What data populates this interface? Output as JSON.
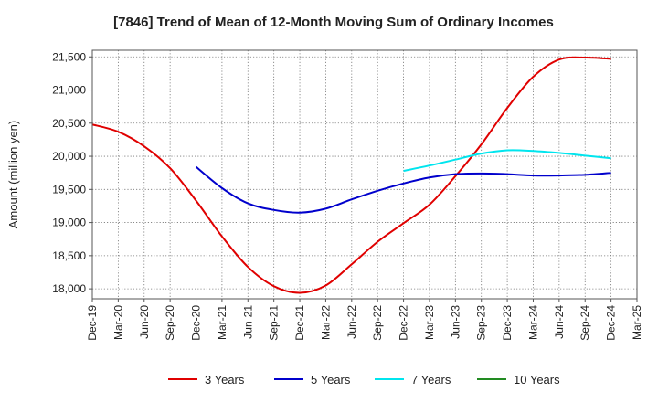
{
  "chart_data": {
    "type": "line",
    "title": "[7846]  Trend of Mean of 12-Month Moving Sum of Ordinary Incomes",
    "xlabel": "",
    "ylabel": "Amount (million yen)",
    "ylim": [
      17850,
      21600
    ],
    "yticks": [
      18000,
      18500,
      19000,
      19500,
      20000,
      20500,
      21000,
      21500
    ],
    "ytick_labels": [
      "18,000",
      "18,500",
      "19,000",
      "19,500",
      "20,000",
      "20,500",
      "21,000",
      "21,500"
    ],
    "x_labels": [
      "Dec-19",
      "Mar-20",
      "Jun-20",
      "Sep-20",
      "Dec-20",
      "Mar-21",
      "Jun-21",
      "Sep-21",
      "Dec-21",
      "Mar-22",
      "Jun-22",
      "Sep-22",
      "Dec-22",
      "Mar-23",
      "Jun-23",
      "Sep-23",
      "Dec-23",
      "Mar-24",
      "Jun-24",
      "Sep-24",
      "Dec-24",
      "Mar-25"
    ],
    "series": [
      {
        "name": "3 Years",
        "color": "#e00000",
        "values": [
          20480,
          20370,
          20150,
          19820,
          19330,
          18790,
          18330,
          18040,
          17940,
          18050,
          18370,
          18710,
          18990,
          19270,
          19700,
          20180,
          20730,
          21200,
          21460,
          21490,
          21470,
          null
        ]
      },
      {
        "name": "5 Years",
        "color": "#0000cc",
        "values": [
          null,
          null,
          null,
          null,
          19840,
          19520,
          19290,
          19190,
          19150,
          19210,
          19350,
          19480,
          19590,
          19680,
          19730,
          19740,
          19730,
          19710,
          19710,
          19720,
          19750,
          null
        ]
      },
      {
        "name": "7 Years",
        "color": "#00e5ee",
        "values": [
          null,
          null,
          null,
          null,
          null,
          null,
          null,
          null,
          null,
          null,
          null,
          null,
          19780,
          19860,
          19950,
          20040,
          20090,
          20080,
          20050,
          20010,
          19970,
          null
        ]
      },
      {
        "name": "10 Years",
        "color": "#228b22",
        "values": [
          null,
          null,
          null,
          null,
          null,
          null,
          null,
          null,
          null,
          null,
          null,
          null,
          null,
          null,
          null,
          null,
          null,
          null,
          null,
          null,
          null,
          null
        ]
      }
    ],
    "grid": true,
    "legend_position": "bottom"
  }
}
